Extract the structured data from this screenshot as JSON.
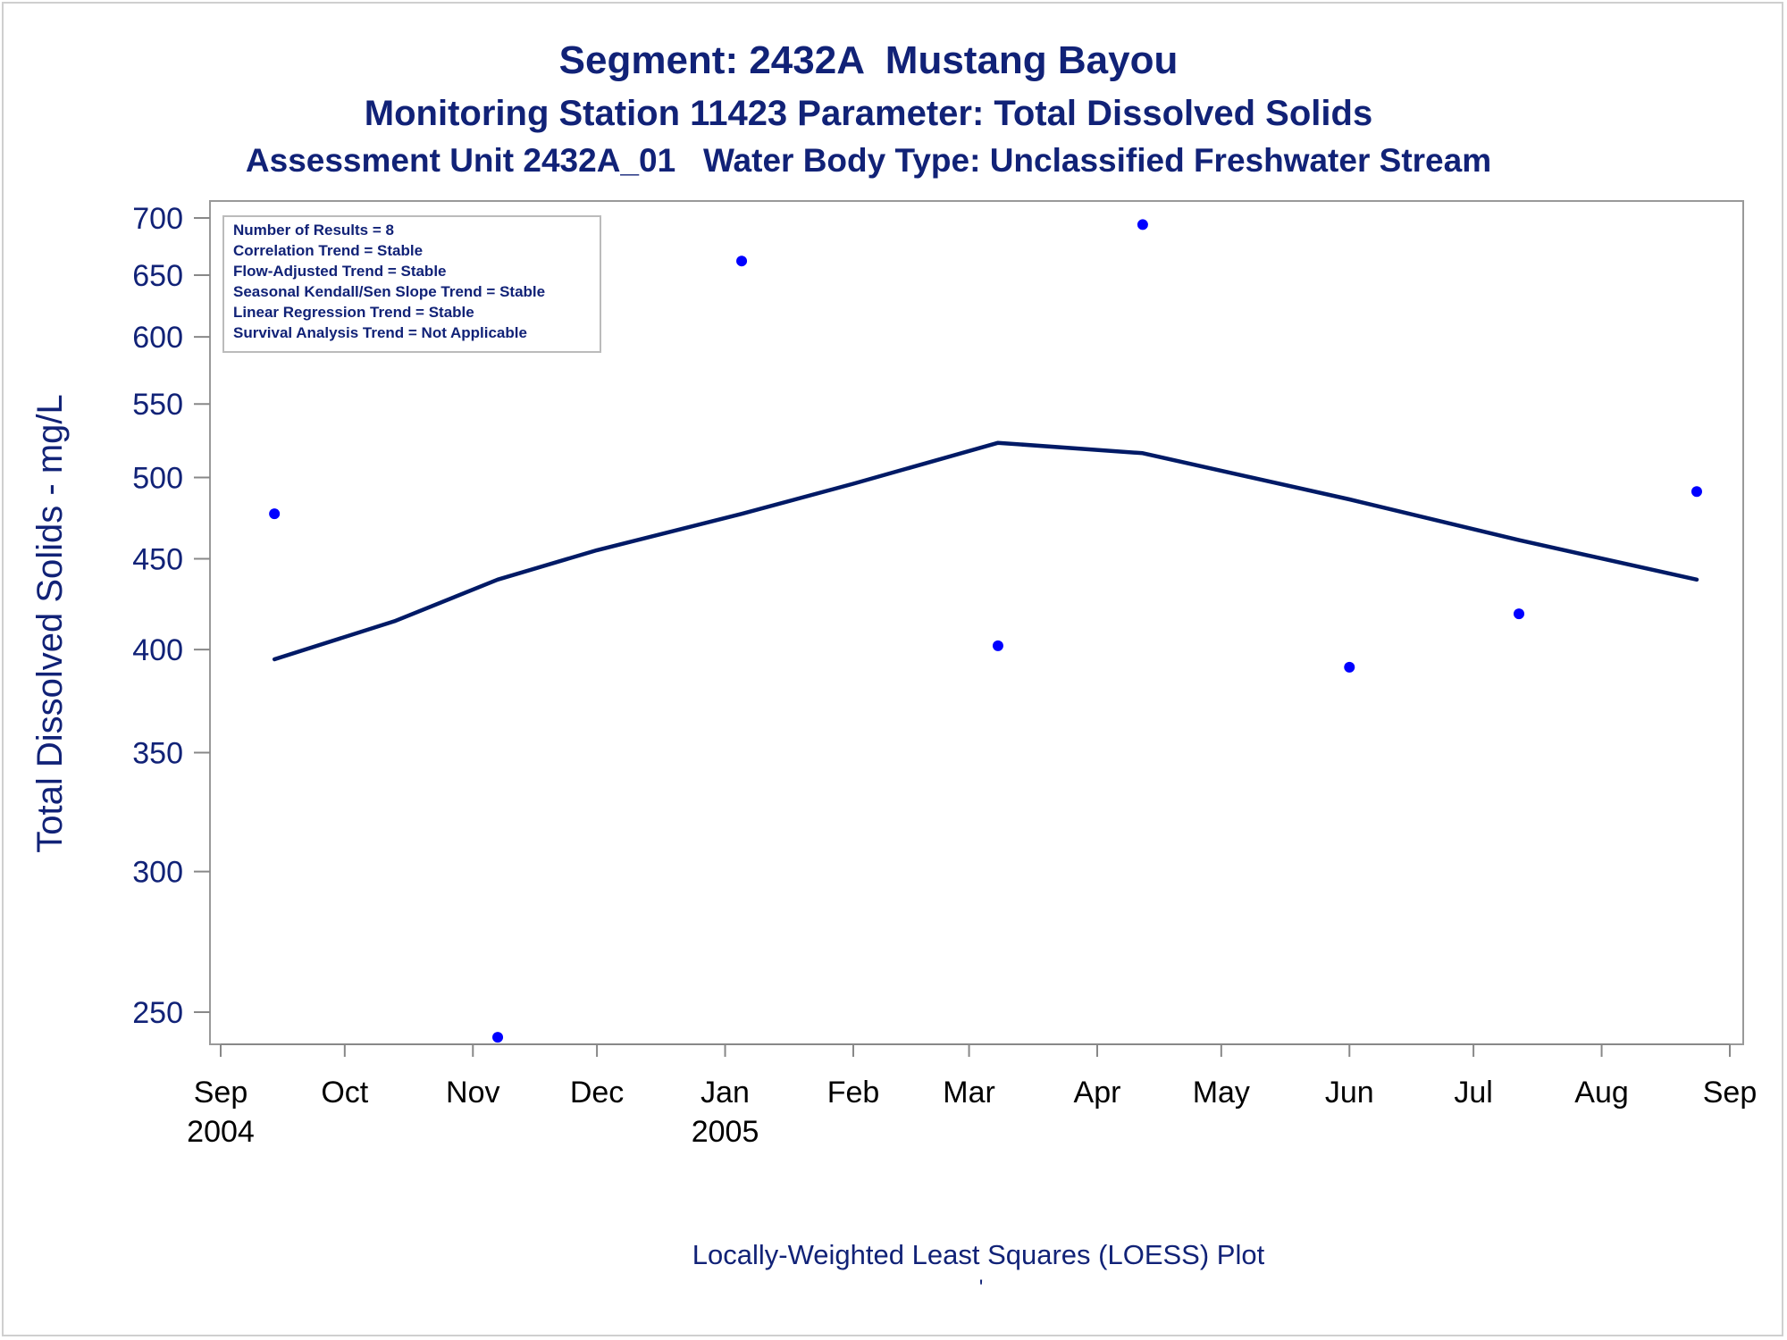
{
  "chart_data": {
    "type": "scatter",
    "title": "Segment: 2432A  Mustang Bayou",
    "subtitle": "Monitoring Station 11423 Parameter: Total Dissolved Solids",
    "subtitle2": "Assessment Unit 2432A_01   Water Body Type: Unclassified Freshwater Stream",
    "ylabel": "Total Dissolved Solids - mg/L",
    "footnote": "Locally-Weighted Least Squares (LOESS) Plot",
    "footnote_mark": "'",
    "y_scale": "log",
    "ylim": [
      240,
      700
    ],
    "yticks": [
      250,
      300,
      350,
      400,
      450,
      500,
      550,
      600,
      650,
      700
    ],
    "xlim": [
      "2004-09-01",
      "2005-09-01"
    ],
    "xticks": [
      {
        "date": "2004-09-01",
        "label": "Sep",
        "year": "2004"
      },
      {
        "date": "2004-10-01",
        "label": "Oct",
        "year": ""
      },
      {
        "date": "2004-11-01",
        "label": "Nov",
        "year": ""
      },
      {
        "date": "2004-12-01",
        "label": "Dec",
        "year": ""
      },
      {
        "date": "2005-01-01",
        "label": "Jan",
        "year": "2005"
      },
      {
        "date": "2005-02-01",
        "label": "Feb",
        "year": ""
      },
      {
        "date": "2005-03-01",
        "label": "Mar",
        "year": ""
      },
      {
        "date": "2005-04-01",
        "label": "Apr",
        "year": ""
      },
      {
        "date": "2005-05-01",
        "label": "May",
        "year": ""
      },
      {
        "date": "2005-06-01",
        "label": "Jun",
        "year": ""
      },
      {
        "date": "2005-07-01",
        "label": "Jul",
        "year": ""
      },
      {
        "date": "2005-08-01",
        "label": "Aug",
        "year": ""
      },
      {
        "date": "2005-09-01",
        "label": "Sep",
        "year": ""
      }
    ],
    "points": [
      {
        "x": "2004-09-14",
        "y": 477
      },
      {
        "x": "2004-11-07",
        "y": 242
      },
      {
        "x": "2005-01-05",
        "y": 662
      },
      {
        "x": "2005-03-08",
        "y": 402
      },
      {
        "x": "2005-04-12",
        "y": 694
      },
      {
        "x": "2005-06-01",
        "y": 391
      },
      {
        "x": "2005-07-12",
        "y": 419
      },
      {
        "x": "2005-08-24",
        "y": 491
      }
    ],
    "loess": [
      {
        "x": "2004-09-14",
        "y": 395
      },
      {
        "x": "2004-10-13",
        "y": 415
      },
      {
        "x": "2004-11-07",
        "y": 438
      },
      {
        "x": "2004-12-01",
        "y": 455
      },
      {
        "x": "2005-01-05",
        "y": 477
      },
      {
        "x": "2005-02-01",
        "y": 496
      },
      {
        "x": "2005-03-08",
        "y": 523
      },
      {
        "x": "2005-04-12",
        "y": 516
      },
      {
        "x": "2005-06-01",
        "y": 486
      },
      {
        "x": "2005-07-12",
        "y": 461
      },
      {
        "x": "2005-08-24",
        "y": 438
      }
    ],
    "info_box": {
      "position": "top-left",
      "lines": [
        "Number of Results = 8",
        "Correlation Trend = Stable",
        "Flow-Adjusted Trend = Stable",
        "Seasonal Kendall/Sen Slope Trend = Stable",
        "Linear Regression Trend = Stable",
        "Survival Analysis Trend = Not Applicable"
      ]
    },
    "grid": false,
    "colors": {
      "title": "#112277",
      "points": "#0000ff",
      "loess_line": "#001a66",
      "axis": "#888888",
      "x_tick_text": "#000000",
      "y_tick_text": "#112277"
    }
  }
}
